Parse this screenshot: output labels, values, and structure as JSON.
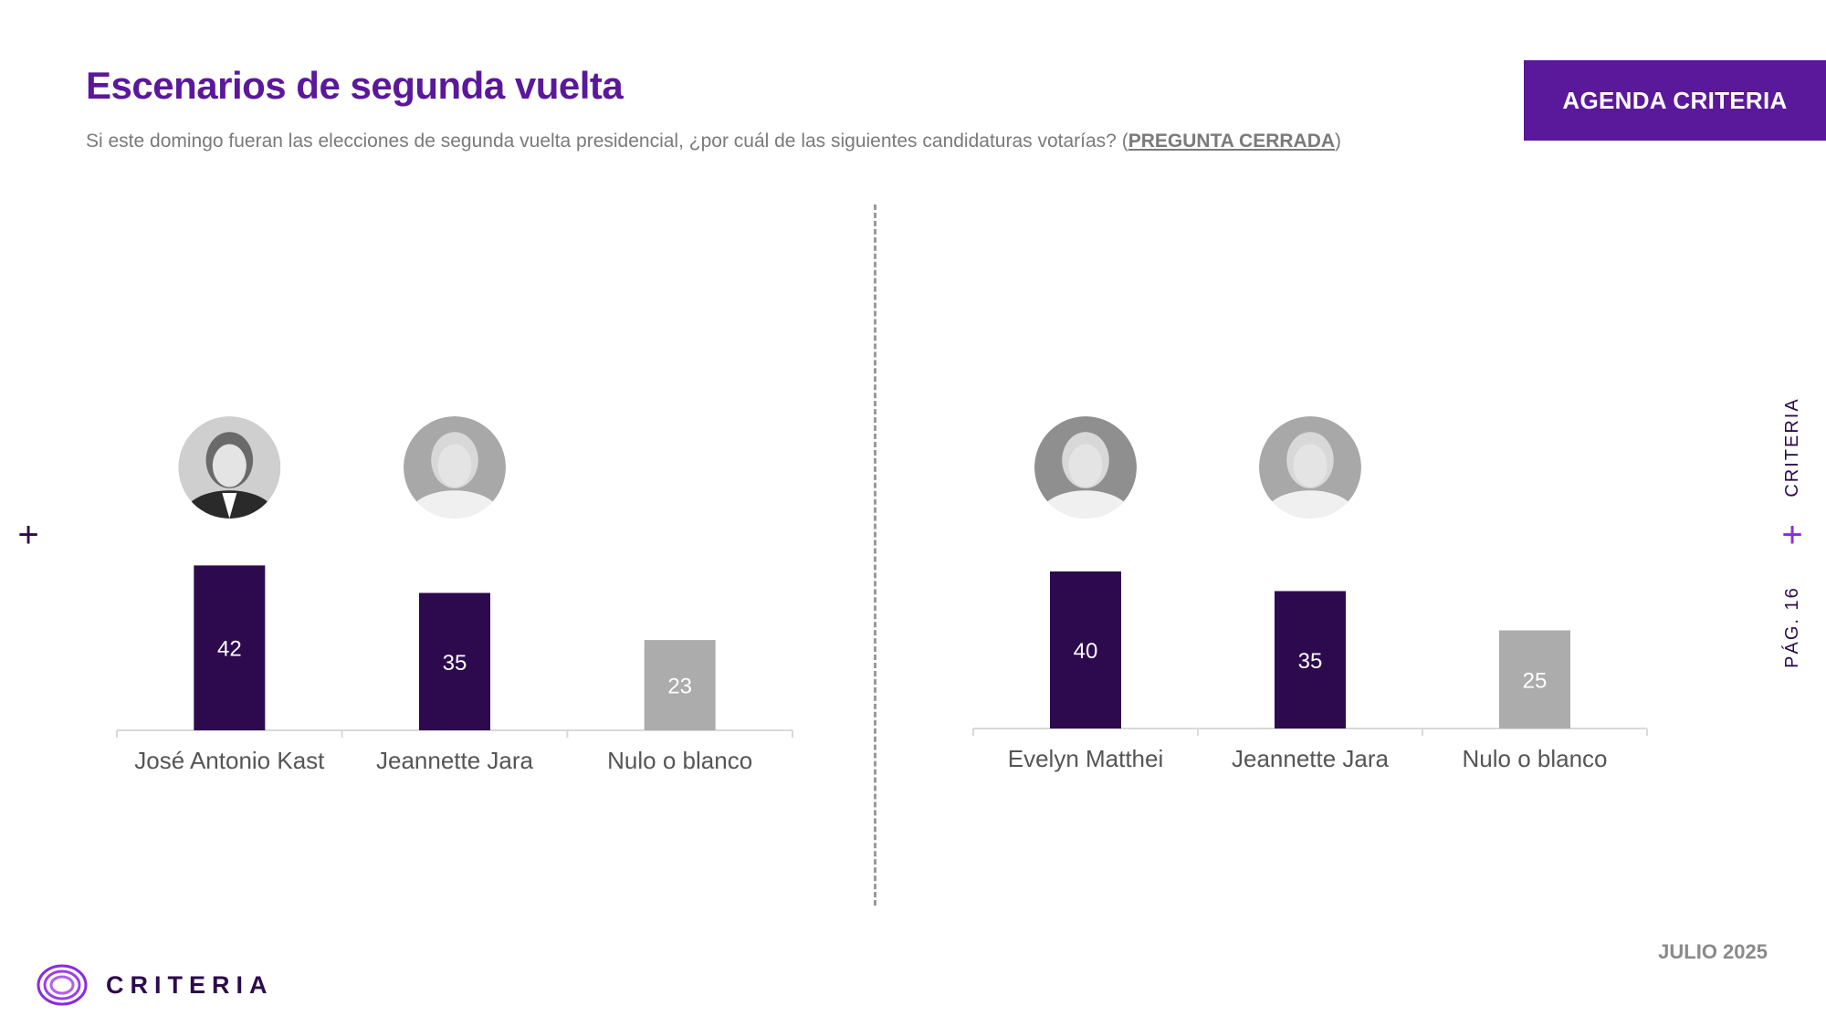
{
  "header": {
    "title": "Escenarios de segunda vuelta",
    "subtitle_main": "Si este domingo fueran las elecciones de segunda vuelta presidencial, ¿por cuál de las siguientes candidaturas votarías?",
    "subtitle_open": " (",
    "subtitle_closed": "PREGUNTA CERRADA",
    "subtitle_close": ")",
    "badge": "AGENDA CRITERIA"
  },
  "sidebar": {
    "brand": "CRITERIA",
    "page": "PÁG. 16"
  },
  "footer": {
    "date": "JULIO 2025",
    "logo_text": "CRITERIA"
  },
  "colors": {
    "accent": "#5a189a",
    "candidate_bar": "#2d0a4e",
    "blank_bar": "#acacac",
    "axis": "#d9d9d9"
  },
  "chart_data": [
    {
      "type": "bar",
      "categories": [
        "José Antonio Kast",
        "Jeannette Jara",
        "Nulo o blanco"
      ],
      "values": [
        42,
        35,
        23
      ],
      "ylim": [
        0,
        50
      ],
      "grid": false
    },
    {
      "type": "bar",
      "categories": [
        "Evelyn Matthei",
        "Jeannette Jara",
        "Nulo o blanco"
      ],
      "values": [
        40,
        35,
        25
      ],
      "ylim": [
        0,
        50
      ],
      "grid": false
    }
  ]
}
